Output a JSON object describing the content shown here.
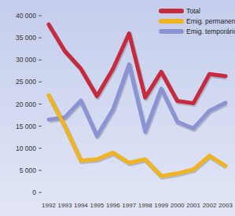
{
  "chart_data": {
    "type": "line",
    "categories": [
      "1992",
      "1993",
      "1994",
      "1995",
      "1996",
      "1997",
      "1998",
      "1999",
      "2000",
      "2001",
      "2002",
      "2003"
    ],
    "series": [
      {
        "name": "Total",
        "color": "#c62a3c",
        "values": [
          38000,
          32000,
          28000,
          21800,
          28000,
          36000,
          21500,
          27300,
          20700,
          20200,
          26800,
          26300
        ]
      },
      {
        "name": "Emig. permanentes",
        "color": "#f0b420",
        "values": [
          22000,
          15000,
          7200,
          7500,
          9000,
          6700,
          7500,
          3700,
          4300,
          5200,
          8300,
          6000
        ]
      },
      {
        "name": "Emig. temporários",
        "color": "#8a94d4",
        "values": [
          16500,
          17000,
          20800,
          12800,
          18800,
          29000,
          13800,
          23500,
          16000,
          14500,
          18500,
          20300
        ]
      }
    ],
    "ylim": [
      0,
      40000
    ],
    "yticks": [
      0,
      {
        "value": 5000,
        "label": "5 000"
      },
      {
        "value": 10000,
        "label": "10 000"
      },
      {
        "value": 15000,
        "label": "15 000"
      },
      {
        "value": 20000,
        "label": "20 000"
      },
      {
        "value": 25000,
        "label": "25 000"
      },
      {
        "value": 30000,
        "label": "30 000"
      },
      {
        "value": 35000,
        "label": "35 000"
      },
      {
        "value": 40000,
        "label": "40 000"
      }
    ],
    "legend": "top-right",
    "grid": false
  }
}
